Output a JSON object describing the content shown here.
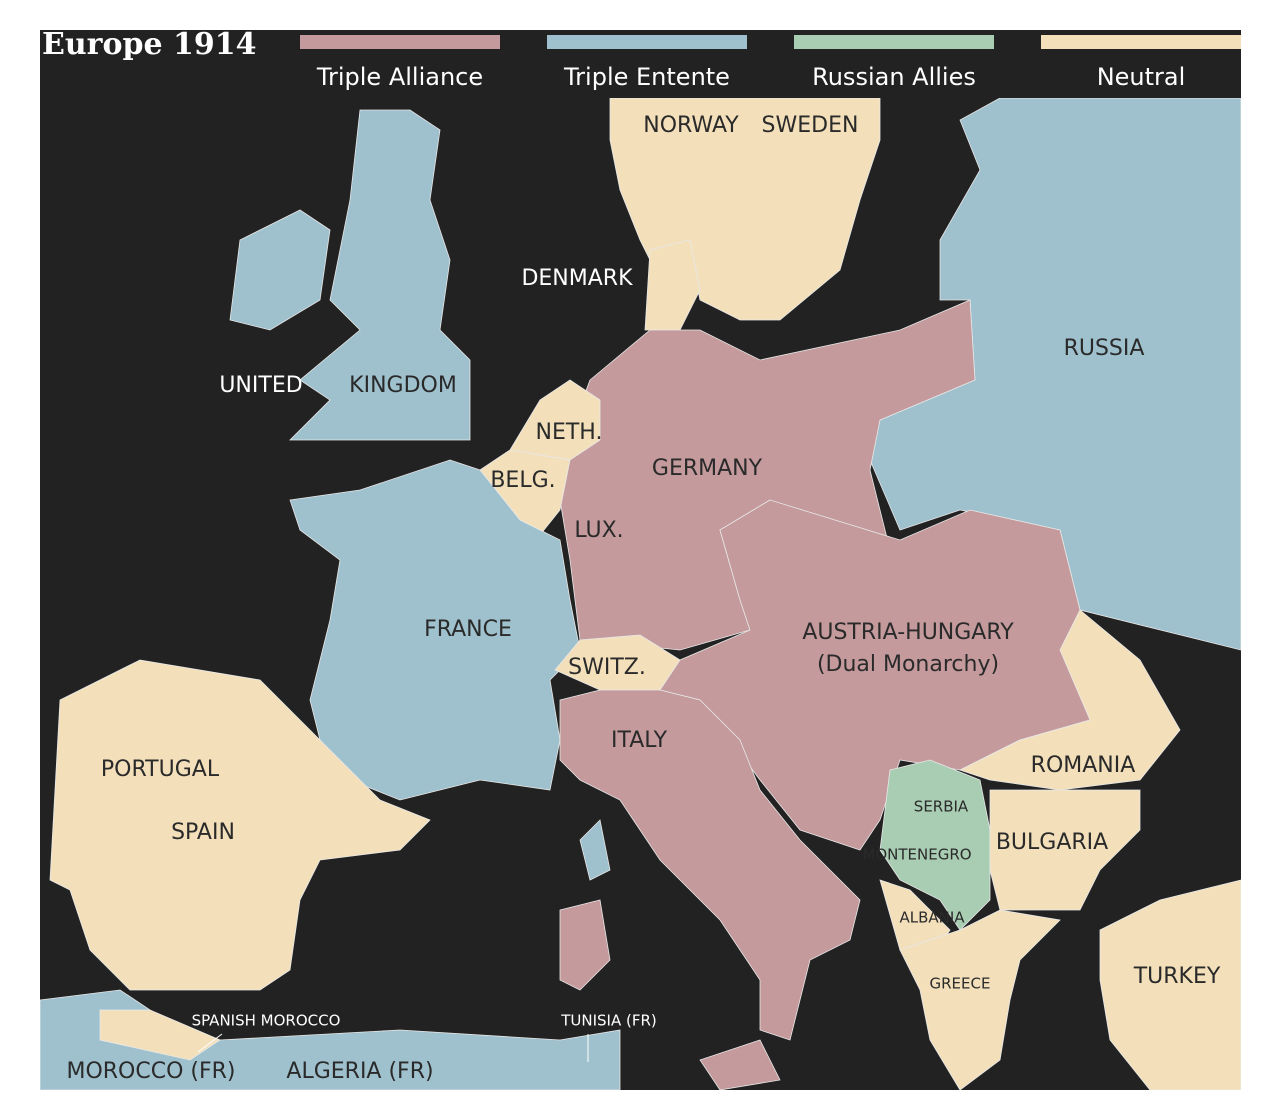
{
  "header": {
    "title": "Europe 1914"
  },
  "legend": [
    {
      "label": "Triple Alliance",
      "color": "#c49a9c"
    },
    {
      "label": "Triple Entente",
      "color": "#9fc0cd"
    },
    {
      "label": "Russian Allies",
      "color": "#a9cdb2"
    },
    {
      "label": "Neutral",
      "color": "#f3e0bb"
    }
  ],
  "labels": [
    "NORWAY",
    "SWEDEN",
    "DENMARK",
    "RUSSIA",
    "UNITED",
    "KINGDOM",
    "NETH.",
    "GERMANY",
    "BELG.",
    "LUX.",
    "FRANCE",
    "AUSTRIA-HUNGARY",
    "(Dual Monarchy)",
    "SWITZ.",
    "ITALY",
    "PORTUGAL",
    "SPAIN",
    "ROMANIA",
    "SERBIA",
    "BULGARIA",
    "MONTENEGRO",
    "ALBANIA",
    "GREECE",
    "TURKEY",
    "SPANISH MOROCCO",
    "TUNISIA (FR)",
    "MOROCCO (FR)",
    "ALGERIA (FR)"
  ]
}
